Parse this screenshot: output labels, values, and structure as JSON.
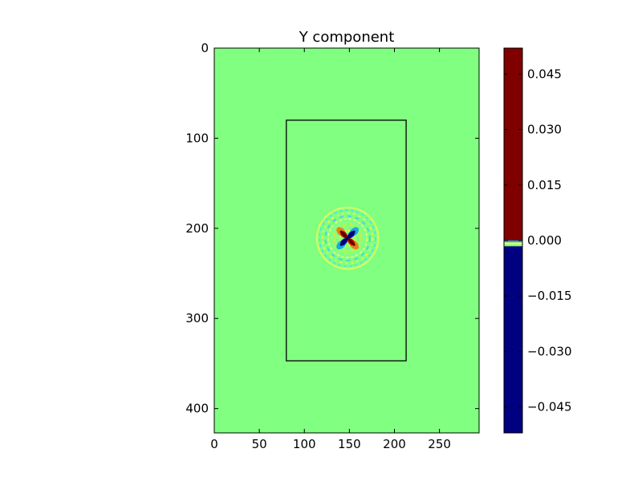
{
  "chart_data": {
    "type": "heatmap",
    "title": "Y component",
    "x_range": [
      0,
      294
    ],
    "y_range": [
      0,
      427
    ],
    "y_inverted": true,
    "x_ticks": [
      0,
      50,
      100,
      150,
      200,
      250
    ],
    "y_ticks": [
      0,
      100,
      200,
      300,
      400
    ],
    "x_tick_labels": [
      "0",
      "50",
      "100",
      "150",
      "200",
      "250"
    ],
    "y_tick_labels": [
      "0",
      "100",
      "200",
      "300",
      "400"
    ],
    "background_value": 0.0,
    "colormap": "jet",
    "overlay_rectangle": {
      "x0": 80,
      "x1": 213,
      "y0": 80,
      "y1": 347
    },
    "wave_pattern": {
      "center": [
        148,
        211
      ],
      "ring_radius": 34,
      "lobe_values": [
        0.05,
        -0.05,
        0.05,
        -0.05
      ]
    },
    "colorbar": {
      "range": [
        -0.052,
        0.052
      ],
      "ticks": [
        0.045,
        0.03,
        0.015,
        0.0,
        -0.015,
        -0.03,
        -0.045
      ],
      "tick_labels": [
        "0.045",
        "0.030",
        "0.015",
        "0.000",
        "−0.015",
        "−0.030",
        "−0.045"
      ],
      "segments": [
        {
          "from": 0.0,
          "to": 0.052,
          "color": "#800000"
        },
        {
          "from": -0.052,
          "to": -0.0015,
          "color": "#000080"
        }
      ],
      "center_colors": [
        "#00b0ff",
        "#ffff40",
        "#80ff80"
      ]
    },
    "grid": false,
    "legend": "none"
  },
  "colors": {
    "field_green": "#80ff80",
    "dark_red": "#800000",
    "dark_blue": "#000080",
    "red": "#ff0000",
    "blue": "#0000ff",
    "yellow": "#ffff00",
    "cyan": "#00ffff"
  }
}
